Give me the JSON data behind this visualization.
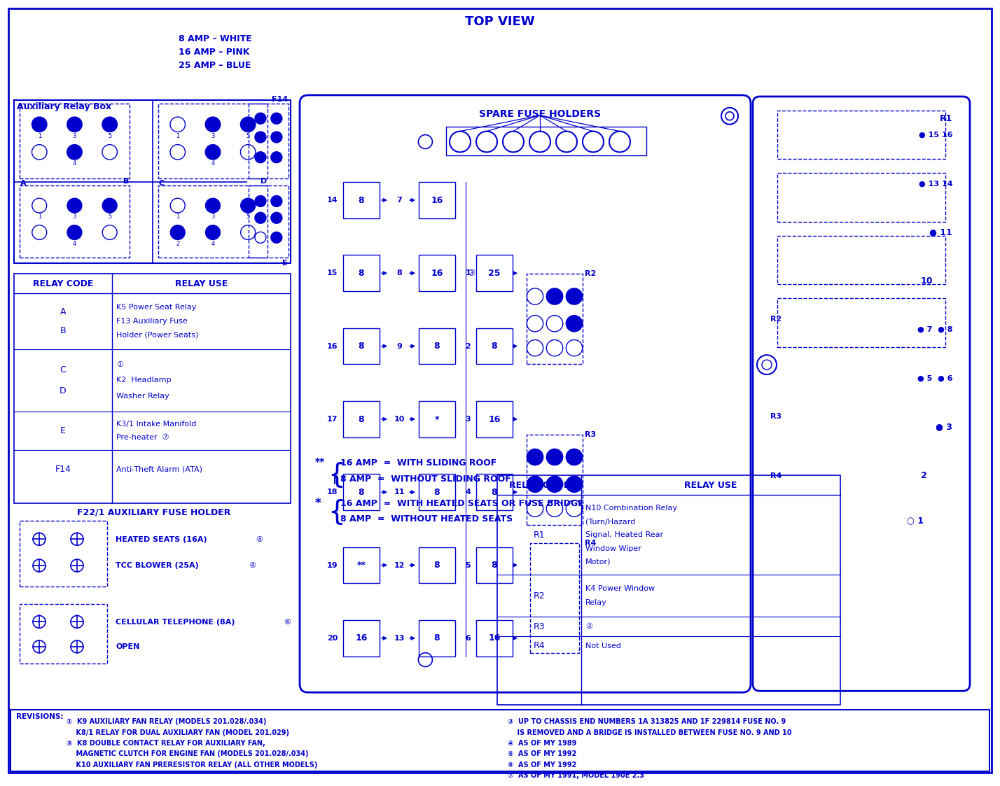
{
  "bg_color": "#ffffff",
  "text_color": "#0000cc",
  "line_color": "#0000cc",
  "title": "TOP VIEW",
  "amp_legend": [
    "8 AMP – WHITE",
    "16 AMP – PINK",
    "25 AMP – BLUE"
  ],
  "relay_table_rows": [
    [
      "A\nB",
      "K5 Power Seat Relay\nF13 Auxiliary Fuse\nHolder (Power Seats)"
    ],
    [
      "C\nD",
      "①\nK2  Headlamp\nWasher Relay"
    ],
    [
      "E",
      "K3/1 Intake Manifold\nPre-heater  ⑦"
    ],
    [
      "F14",
      "Anti-Theft Alarm (ATA)"
    ]
  ],
  "f221_title": "F22/1 AUXILIARY FUSE HOLDER",
  "spare_fuse_title": "SPARE FUSE HOLDERS",
  "relay_table2_rows": [
    [
      "R1",
      "N10 Combination Relay\n(Turn/Hazard\nSignal, Heated Rear\nWindow Wiper\nMotor)"
    ],
    [
      "R2",
      "K4 Power Window\nRelay"
    ],
    [
      "R3",
      "②"
    ],
    [
      "R4",
      "Not Used"
    ]
  ],
  "revisions_left": [
    "①  K9 AUXILIARY FAN RELAY (MODELS 201.028/.034)",
    "    K8/1 RELAY FOR DUAL AUXILIARY FAN (MODEL 201.029)",
    "②  K8 DOUBLE CONTACT RELAY FOR AUXILIARY FAN,",
    "    MAGNETIC CLUTCH FOR ENGINE FAN (MODELS 201.028/.034)",
    "    K10 AUXILIARY FAN PRERESISTOR RELAY (ALL OTHER MODELS)"
  ],
  "revisions_right": [
    "③  UP TO CHASSIS END NUMBERS 1A 313825 AND 1F 229814 FUSE NO. 9",
    "    IS REMOVED AND A BRIDGE IS INSTALLED BETWEEN FUSE NO. 9 AND 10",
    "④  AS OF MY 1989",
    "⑤  AS OF MY 1992",
    "⑥  AS OF MY 1992",
    "⑦  AS OF MY 1991, MODEL 190E 2.3"
  ],
  "fuse_rows": [
    {
      "num": "14",
      "left": "8",
      "mid": "7",
      "right": "16"
    },
    {
      "num": "15",
      "left": "8",
      "mid": "8",
      "right": "16"
    },
    {
      "num": "16",
      "left": "8",
      "mid": "9",
      "right": "8"
    },
    {
      "num": "17",
      "left": "8",
      "mid": "10",
      "right": "*"
    },
    {
      "num": "18",
      "left": "8",
      "mid": "11",
      "right": "8"
    },
    {
      "num": "19",
      "left": "**",
      "mid": "12",
      "right": "8"
    },
    {
      "num": "20",
      "left": "16",
      "mid": "13",
      "right": "8"
    }
  ],
  "fuse_right_rows": [
    {
      "num": "1",
      "val": "25",
      "relay": ""
    },
    {
      "num": "2",
      "val": "8",
      "relay": ""
    },
    {
      "num": "3",
      "val": "16",
      "relay": ""
    },
    {
      "num": "4",
      "val": "8",
      "relay": ""
    },
    {
      "num": "5",
      "val": "8",
      "relay": ""
    },
    {
      "num": "6",
      "val": "16",
      "relay": ""
    }
  ],
  "right_panel_dots": [
    {
      "label": "15 16",
      "relay": ""
    },
    {
      "label": "13 14",
      "relay": ""
    },
    {
      "label": "11",
      "relay": ""
    },
    {
      "label": "10",
      "relay": ""
    },
    {
      "label": "7  8",
      "relay": "R2"
    },
    {
      "label": "5  6",
      "relay": ""
    },
    {
      "label": "3",
      "relay": "R3"
    },
    {
      "label": "2",
      "relay": ""
    },
    {
      "label": "1",
      "relay": "R4"
    }
  ]
}
